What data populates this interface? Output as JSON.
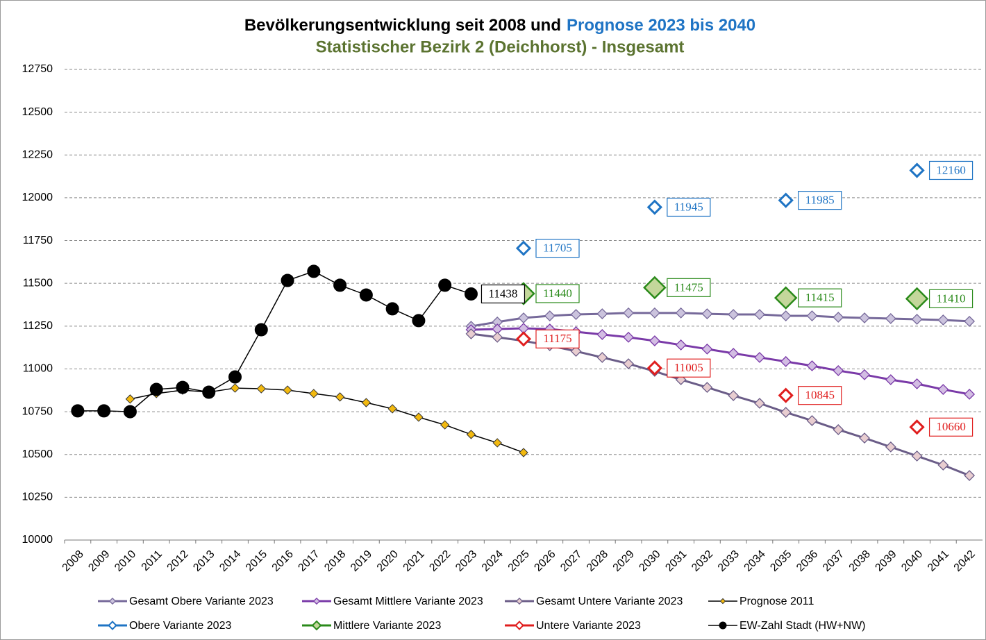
{
  "chart_data": {
    "type": "line",
    "title": "Bevölkerungsentwicklung seit 2008 und",
    "title_highlight": "Prognose 2023 bis 2040",
    "subtitle": "Statistischer Bezirk 2 (Deichhorst) - Insgesamt",
    "categories": [
      "2008",
      "2009",
      "2010",
      "2011",
      "2012",
      "2013",
      "2014",
      "2015",
      "2016",
      "2017",
      "2018",
      "2019",
      "2020",
      "2021",
      "2022",
      "2023",
      "2024",
      "2025",
      "2026",
      "2027",
      "2028",
      "2029",
      "2030",
      "2031",
      "2032",
      "2033",
      "2034",
      "2035",
      "2036",
      "2037",
      "2038",
      "2039",
      "2040",
      "2041",
      "2042"
    ],
    "ylim": [
      10000,
      12750
    ],
    "yticks": [
      10000,
      10250,
      10500,
      10750,
      11000,
      11250,
      11500,
      11750,
      12000,
      12250,
      12500,
      12750
    ],
    "grid": true,
    "legend": "bottom",
    "series": [
      {
        "name": "Gesamt Obere Variante 2023",
        "color": "#76699a",
        "marker_color": "#cbc3dd",
        "marker": "diamond",
        "line": true,
        "values": [
          null,
          null,
          null,
          null,
          null,
          null,
          null,
          null,
          null,
          null,
          null,
          null,
          null,
          null,
          null,
          11249,
          11274,
          11298,
          11310,
          11318,
          11322,
          11327,
          11327,
          11327,
          11322,
          11318,
          11318,
          11310,
          11310,
          11302,
          11298,
          11294,
          11290,
          11286,
          11278
        ]
      },
      {
        "name": "Gesamt Mittlere Variante 2023",
        "color": "#7a3aa8",
        "marker_color": "#d3bde3",
        "marker": "diamond",
        "line": true,
        "values": [
          null,
          null,
          null,
          null,
          null,
          null,
          null,
          null,
          null,
          null,
          null,
          null,
          null,
          null,
          null,
          11229,
          11233,
          11237,
          11233,
          11217,
          11201,
          11185,
          11164,
          11140,
          11116,
          11091,
          11067,
          11043,
          11018,
          10990,
          10966,
          10937,
          10913,
          10880,
          10852
        ]
      },
      {
        "name": "Gesamt Untere Variante 2023",
        "color": "#6b5d88",
        "marker_color": "#e8cdd0",
        "marker": "diamond",
        "line": true,
        "values": [
          null,
          null,
          null,
          null,
          null,
          null,
          null,
          null,
          null,
          null,
          null,
          null,
          null,
          null,
          null,
          11205,
          11185,
          11164,
          11136,
          11103,
          11067,
          11030,
          10986,
          10937,
          10892,
          10844,
          10799,
          10746,
          10698,
          10645,
          10596,
          10544,
          10491,
          10438,
          10377
        ]
      },
      {
        "name": "Prognose 2011",
        "color": "#000000",
        "marker_color": "#f2b90f",
        "marker": "diamond-small",
        "line": true,
        "values": [
          null,
          null,
          10824,
          10856,
          10876,
          10864,
          10888,
          10884,
          10876,
          10856,
          10836,
          10803,
          10767,
          10718,
          10673,
          10617,
          10568,
          10511,
          null,
          null,
          null,
          null,
          null,
          null,
          null,
          null,
          null,
          null,
          null,
          null,
          null,
          null,
          null,
          null,
          null
        ]
      },
      {
        "name": "Obere Variante 2023",
        "color": "#1f74c4",
        "marker_color": "#ffffff",
        "marker": "diamond-open",
        "line": false,
        "data_labels": "all",
        "values": [
          null,
          null,
          null,
          null,
          null,
          null,
          null,
          null,
          null,
          null,
          null,
          null,
          null,
          null,
          null,
          null,
          null,
          11705,
          null,
          null,
          null,
          null,
          11945,
          null,
          null,
          null,
          null,
          11985,
          null,
          null,
          null,
          null,
          12160,
          null,
          null
        ]
      },
      {
        "name": "Mittlere Variante 2023",
        "color": "#2a8a1a",
        "marker_color": "#c4d79b",
        "marker": "diamond-large",
        "line": false,
        "data_labels": "all",
        "values": [
          null,
          null,
          null,
          null,
          null,
          null,
          null,
          null,
          null,
          null,
          null,
          null,
          null,
          null,
          null,
          null,
          null,
          11440,
          null,
          null,
          null,
          null,
          11475,
          null,
          null,
          null,
          null,
          11415,
          null,
          null,
          null,
          null,
          11410,
          null,
          null
        ]
      },
      {
        "name": "Untere Variante 2023",
        "color": "#e01e1e",
        "marker_color": "#ffffff",
        "marker": "diamond-open",
        "line": false,
        "data_labels": "all",
        "values": [
          null,
          null,
          null,
          null,
          null,
          null,
          null,
          null,
          null,
          null,
          null,
          null,
          null,
          null,
          null,
          null,
          null,
          11175,
          null,
          null,
          null,
          null,
          11005,
          null,
          null,
          null,
          null,
          10845,
          null,
          null,
          null,
          null,
          10660,
          null,
          null
        ]
      },
      {
        "name": "EW-Zahl Stadt (HW+NW)",
        "color": "#000000",
        "marker_color": "#000000",
        "marker": "circle",
        "line": true,
        "data_labels": "last",
        "values": [
          10755,
          10755,
          10750,
          10880,
          10892,
          10864,
          10953,
          11229,
          11517,
          11570,
          11489,
          11432,
          11351,
          11282,
          11489,
          11438,
          null,
          null,
          null,
          null,
          null,
          null,
          null,
          null,
          null,
          null,
          null,
          null,
          null,
          null,
          null,
          null,
          null,
          null,
          null
        ]
      }
    ]
  }
}
